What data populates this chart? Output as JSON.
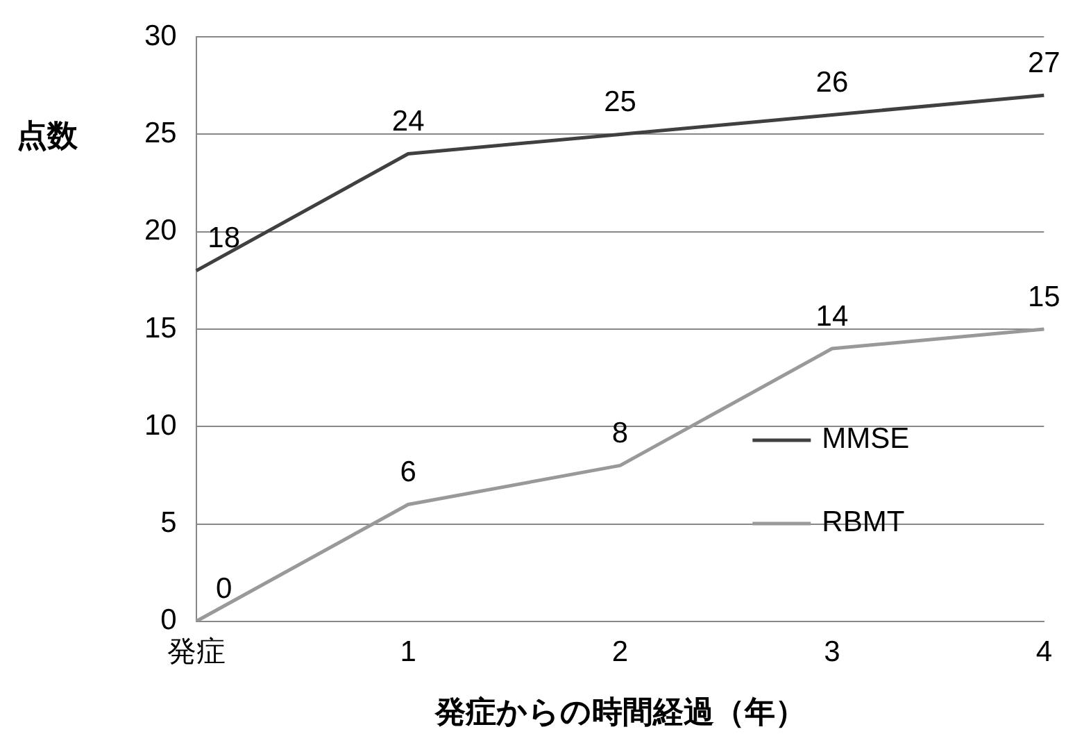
{
  "chart_data": {
    "type": "line",
    "xlabel": "発症からの時間経過（年）",
    "ylabel": "点数",
    "categories": [
      "発症",
      "1",
      "2",
      "3",
      "4"
    ],
    "series": [
      {
        "name": "MMSE",
        "color": "#404040",
        "values": [
          18,
          24,
          25,
          26,
          27
        ]
      },
      {
        "name": "RBMT",
        "color": "#999999",
        "values": [
          0,
          6,
          8,
          14,
          15
        ]
      }
    ],
    "ylim": [
      0,
      30
    ],
    "yticks": [
      0,
      5,
      10,
      15,
      20,
      25,
      30
    ],
    "grid": "y",
    "legend": "right",
    "marker": "none",
    "line_style": "solid",
    "data_labels": true
  }
}
